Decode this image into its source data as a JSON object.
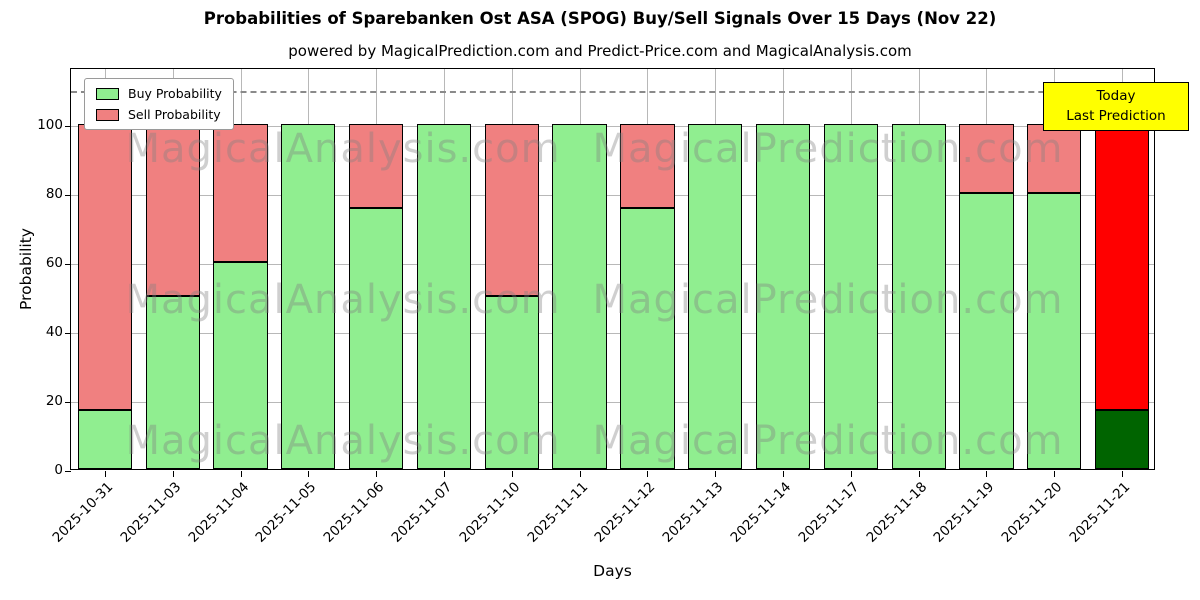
{
  "chart": {
    "title": "Probabilities of Sparebanken Ost ASA (SPOG) Buy/Sell Signals Over 15 Days (Nov 22)",
    "subtitle": "powered by MagicalPrediction.com and Predict-Price.com and MagicalAnalysis.com",
    "xlabel": "Days",
    "ylabel": "Probability"
  },
  "legend": {
    "buy_label": "Buy Probability",
    "sell_label": "Sell Probability"
  },
  "annotation": {
    "line1": "Today",
    "line2": "Last Prediction",
    "bg_color": "#ffff00"
  },
  "watermarks": [
    "MagicalAnalysis.com",
    "MagicalPrediction.com"
  ],
  "colors": {
    "buy": "#90ee90",
    "sell": "#f08080",
    "today_buy": "#006400",
    "today_sell": "#ff0000",
    "bar_edge": "#000000",
    "grid": "#b8b8b8",
    "dashed_line": "#8a8a8a"
  },
  "chart_data": {
    "type": "bar",
    "stacked": true,
    "title": "Probabilities of Sparebanken Ost ASA (SPOG) Buy/Sell Signals Over 15 Days (Nov 22)",
    "xlabel": "Days",
    "ylabel": "Probability",
    "categories": [
      "2025-10-31",
      "2025-11-03",
      "2025-11-04",
      "2025-11-05",
      "2025-11-06",
      "2025-11-07",
      "2025-11-10",
      "2025-11-11",
      "2025-11-12",
      "2025-11-13",
      "2025-11-14",
      "2025-11-17",
      "2025-11-18",
      "2025-11-19",
      "2025-11-20",
      "2025-11-21"
    ],
    "series": [
      {
        "name": "Buy Probability",
        "values": [
          17,
          50,
          60,
          100,
          75.5,
          100,
          50,
          100,
          75.5,
          100,
          100,
          100,
          100,
          80,
          80,
          17
        ]
      },
      {
        "name": "Sell Probability",
        "values": [
          83,
          50,
          40,
          0,
          24.5,
          0,
          50,
          0,
          24.5,
          0,
          0,
          0,
          0,
          20,
          20,
          83
        ]
      }
    ],
    "yticks": [
      0,
      20,
      40,
      60,
      80,
      100
    ],
    "ylim": [
      0,
      116.5
    ],
    "dashed_line_y": 110,
    "grid": true,
    "legend_position": "upper left",
    "highlight_last_bar": true
  }
}
